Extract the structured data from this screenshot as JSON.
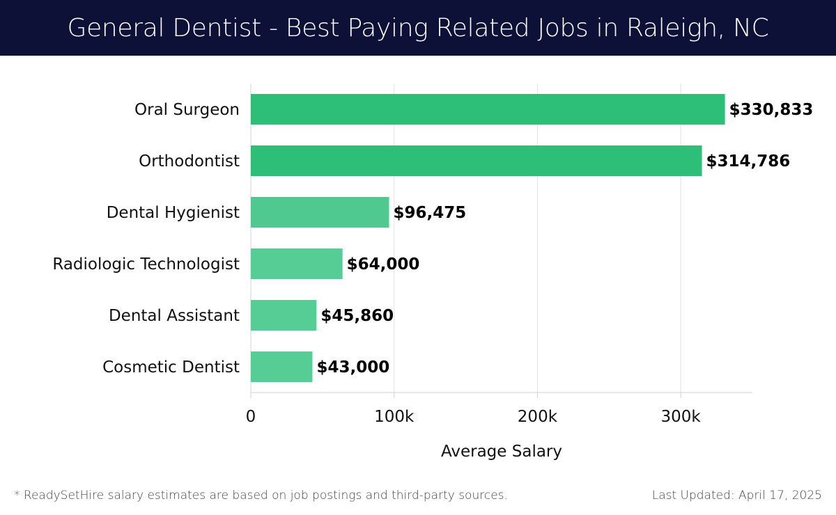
{
  "header": {
    "title": "General Dentist - Best Paying Related Jobs in Raleigh, NC"
  },
  "chart_data": {
    "type": "bar",
    "orientation": "horizontal",
    "categories": [
      "Oral Surgeon",
      "Orthodontist",
      "Dental Hygienist",
      "Radiologic Technologist",
      "Dental Assistant",
      "Cosmetic Dentist"
    ],
    "values": [
      330833,
      314786,
      96475,
      64000,
      45860,
      43000
    ],
    "value_labels": [
      "$330,833",
      "$314,786",
      "$96,475",
      "$64,000",
      "$45,860",
      "$43,000"
    ],
    "bar_colors": [
      "#2dbf78",
      "#2dbf78",
      "#50c990",
      "#56cd94",
      "#56cd94",
      "#56cd94"
    ],
    "xlabel": "Average Salary",
    "ylabel": "",
    "xlim": [
      0,
      350000
    ],
    "xticks": [
      0,
      100000,
      200000,
      300000
    ],
    "xtick_labels": [
      "0",
      "100k",
      "200k",
      "300k"
    ],
    "grid": true
  },
  "footer": {
    "note": "* ReadySetHire salary estimates are based on job postings and third-party sources.",
    "updated": "Last Updated: April 17, 2025"
  }
}
